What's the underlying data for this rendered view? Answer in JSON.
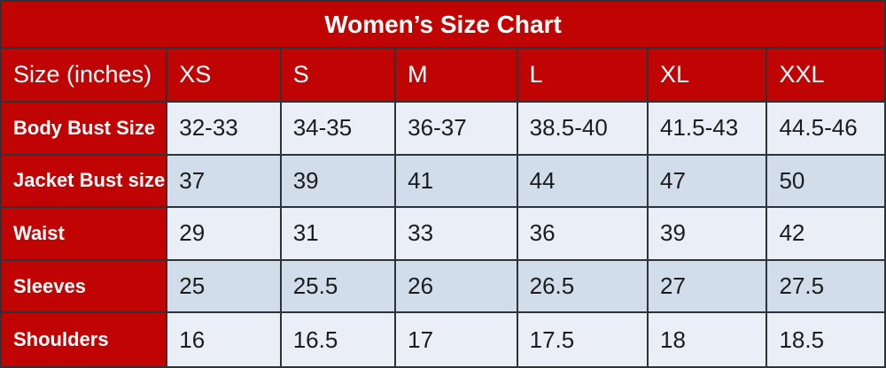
{
  "title": "Women’s Size Chart",
  "colors": {
    "header_red": "#c00404",
    "row_light": "#e9eef7",
    "row_dark": "#d2ddec",
    "border": "#2e3338",
    "header_text": "#ffffff",
    "value_text": "#1c1c1c"
  },
  "chart_data": {
    "type": "table",
    "title": "Women’s Size Chart",
    "columns": [
      "Size (inches)",
      "XS",
      "S",
      "M",
      "L",
      "XL",
      "XXL"
    ],
    "rows": [
      {
        "label": "Body Bust Size",
        "values": [
          "32-33",
          "34-35",
          "36-37",
          "38.5-40",
          "41.5-43",
          "44.5-46"
        ]
      },
      {
        "label": "Jacket Bust size",
        "values": [
          "37",
          "39",
          "41",
          "44",
          "47",
          "50"
        ]
      },
      {
        "label": "Waist",
        "values": [
          "29",
          "31",
          "33",
          "36",
          "39",
          "42"
        ]
      },
      {
        "label": "Sleeves",
        "values": [
          "25",
          "25.5",
          "26",
          "26.5",
          "27",
          "27.5"
        ]
      },
      {
        "label": "Shoulders",
        "values": [
          "16",
          "16.5",
          "17",
          "17.5",
          "18",
          "18.5"
        ]
      }
    ],
    "layout": {
      "header_background": "red",
      "row_striping": "light/dark alternating",
      "units": "inches"
    }
  }
}
